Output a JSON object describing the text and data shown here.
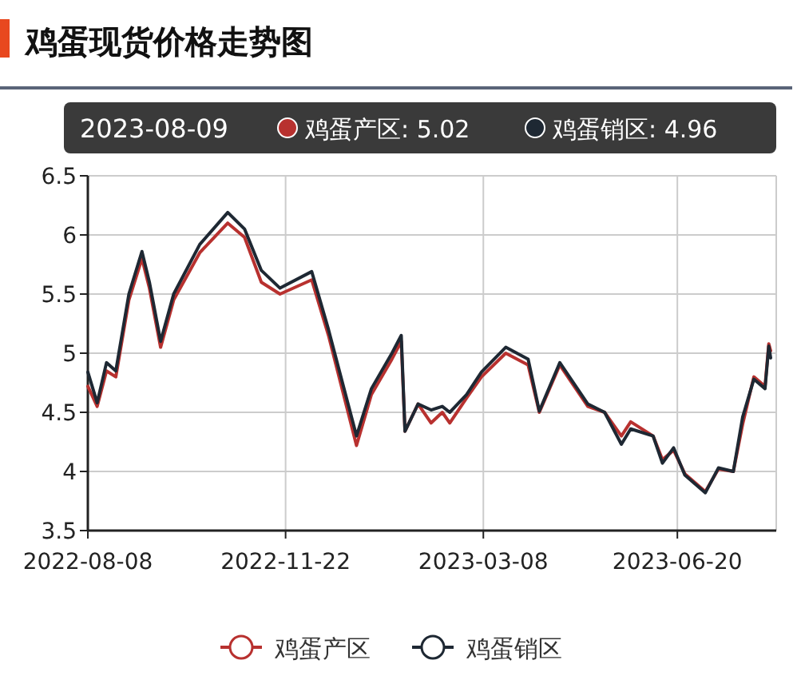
{
  "chart_data": {
    "type": "line",
    "title": "鸡蛋现货价格走势图",
    "x": [
      "2022-08-08",
      "2022-08-13",
      "2022-08-18",
      "2022-08-23",
      "2022-08-30",
      "2022-09-06",
      "2022-09-10",
      "2022-09-16",
      "2022-09-23",
      "2022-10-07",
      "2022-10-22",
      "2022-10-31",
      "2022-11-09",
      "2022-11-19",
      "2022-12-06",
      "2022-12-15",
      "2022-12-30",
      "2023-01-07",
      "2023-01-18",
      "2023-01-23",
      "2023-01-25",
      "2023-02-01",
      "2023-02-08",
      "2023-02-14",
      "2023-02-18",
      "2023-02-27",
      "2023-03-07",
      "2023-03-20",
      "2023-04-01",
      "2023-04-07",
      "2023-04-18",
      "2023-05-03",
      "2023-05-12",
      "2023-05-21",
      "2023-05-26",
      "2023-06-07",
      "2023-06-12",
      "2023-06-18",
      "2023-06-24",
      "2023-07-05",
      "2023-07-12",
      "2023-07-20",
      "2023-07-25",
      "2023-07-31",
      "2023-08-06",
      "2023-08-08",
      "2023-08-09"
    ],
    "series": [
      {
        "name": "鸡蛋产区",
        "color": "#b8312f",
        "values": [
          4.72,
          4.55,
          4.85,
          4.8,
          5.45,
          5.8,
          5.55,
          5.05,
          5.45,
          5.85,
          6.1,
          5.98,
          5.6,
          5.5,
          5.62,
          5.15,
          4.22,
          4.65,
          4.95,
          5.1,
          4.34,
          4.57,
          4.41,
          4.5,
          4.41,
          4.62,
          4.8,
          5.0,
          4.9,
          4.5,
          4.9,
          4.55,
          4.5,
          4.3,
          4.42,
          4.3,
          4.1,
          4.18,
          3.98,
          3.83,
          4.02,
          4.0,
          4.4,
          4.8,
          4.72,
          5.08,
          5.02
        ]
      },
      {
        "name": "鸡蛋销区",
        "color": "#1e2833",
        "values": [
          4.84,
          4.58,
          4.92,
          4.85,
          5.5,
          5.86,
          5.6,
          5.1,
          5.5,
          5.92,
          6.19,
          6.05,
          5.7,
          5.55,
          5.69,
          5.2,
          4.3,
          4.7,
          5.0,
          5.15,
          4.34,
          4.57,
          4.52,
          4.55,
          4.5,
          4.65,
          4.84,
          5.05,
          4.95,
          4.51,
          4.92,
          4.57,
          4.5,
          4.23,
          4.36,
          4.3,
          4.07,
          4.2,
          3.97,
          3.82,
          4.03,
          4.0,
          4.46,
          4.78,
          4.7,
          5.06,
          4.96
        ]
      }
    ],
    "xlim": [
      "2022-08-08",
      "2023-08-12"
    ],
    "xticks": [
      "2022-08-08",
      "2022-11-22",
      "2023-03-08",
      "2023-06-20"
    ],
    "ylim": [
      3.5,
      6.5
    ],
    "yticks": [
      3.5,
      4,
      4.5,
      5,
      5.5,
      6,
      6.5
    ],
    "grid": true,
    "legend": "bottom",
    "annotations": [
      "2023-08-09",
      "鸡蛋产区: 5.02",
      "鸡蛋销区: 4.96"
    ]
  }
}
